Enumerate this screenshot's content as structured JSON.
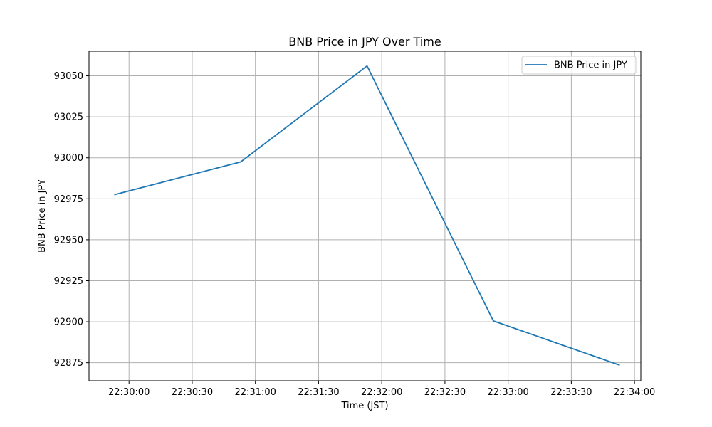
{
  "chart_data": {
    "type": "line",
    "title": "BNB Price in JPY Over Time",
    "xlabel": "Time (JST)",
    "ylabel": "BNB Price in JPY",
    "x_ticks": [
      "22:30:00",
      "22:30:30",
      "22:31:00",
      "22:31:30",
      "22:32:00",
      "22:32:30",
      "22:33:00",
      "22:33:30",
      "22:34:00"
    ],
    "y_ticks": [
      92875,
      92900,
      92925,
      92950,
      92975,
      93000,
      93025,
      93050
    ],
    "xlim": [
      "22:29:41",
      "22:34:03"
    ],
    "ylim": [
      92864,
      93065
    ],
    "grid": true,
    "legend": {
      "position": "top-right"
    },
    "series": [
      {
        "name": "BNB Price in JPY",
        "color": "#1f77b4",
        "x": [
          "22:29:53",
          "22:30:53",
          "22:31:53",
          "22:32:53",
          "22:33:53"
        ],
        "y": [
          92977.5,
          92997.5,
          93056,
          92900.5,
          92873.5
        ]
      }
    ]
  }
}
